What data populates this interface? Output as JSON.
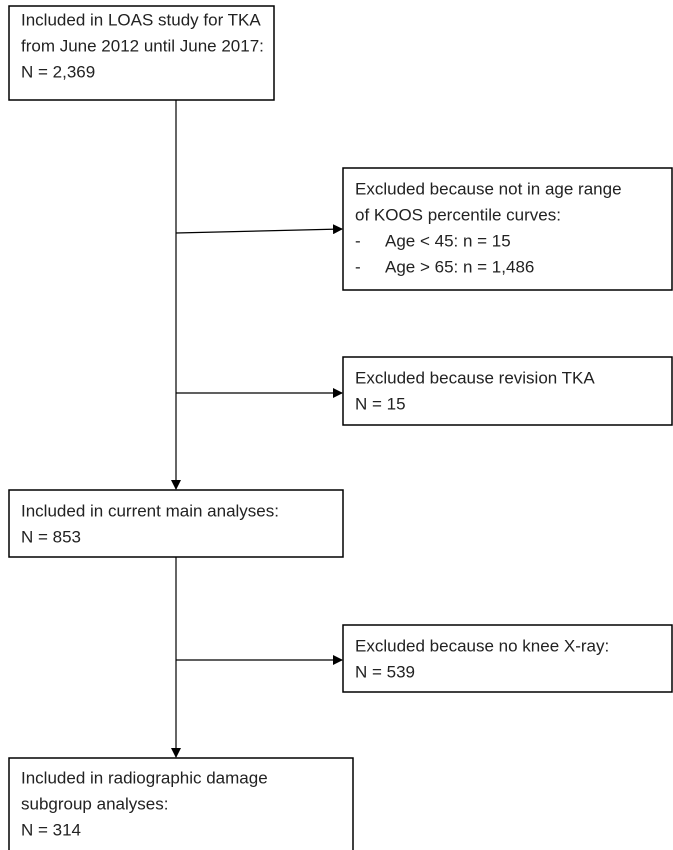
{
  "nodes": [
    {
      "lines": [
        "Included in LOAS study for TKA",
        "from June 2012 until June 2017:",
        "N = 2,369"
      ]
    },
    {
      "lines": [
        "Excluded because not in age range",
        "of KOOS percentile curves:"
      ],
      "items": [
        {
          "marker": "-",
          "text": "Age < 45: n = 15"
        },
        {
          "marker": "-",
          "text": "Age > 65: n = 1,486"
        }
      ]
    },
    {
      "lines": [
        "Excluded because revision TKA",
        "N = 15"
      ]
    },
    {
      "lines": [
        "Included in current main analyses:",
        "N = 853"
      ]
    },
    {
      "lines": [
        "Excluded because no knee X-ray:",
        "N = 539"
      ]
    },
    {
      "lines": [
        "Included in radiographic damage",
        "subgroup analyses:",
        "N = 314"
      ]
    }
  ]
}
